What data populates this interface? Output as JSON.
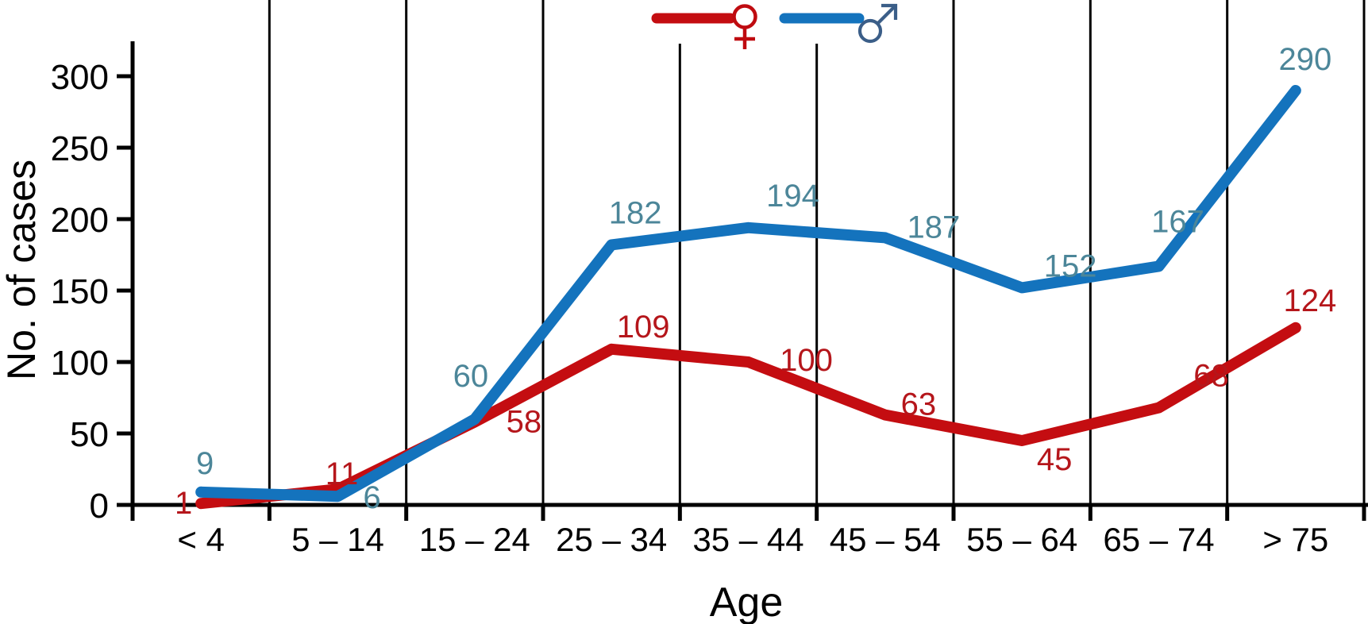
{
  "chart_data": {
    "type": "line",
    "title": "",
    "xlabel": "Age",
    "ylabel": "No. of cases",
    "categories": [
      "< 4",
      "5 – 14",
      "15 – 24",
      "25 – 34",
      "35 – 44",
      "45 – 54",
      "55 – 64",
      "65 – 74",
      "> 75"
    ],
    "yticks": [
      0,
      50,
      100,
      150,
      200,
      250,
      300
    ],
    "ylim": [
      0,
      325
    ],
    "grid": "vertical-category-boundaries",
    "legend_position": "top-center",
    "series": [
      {
        "name": "Female",
        "symbol": "♀",
        "color": "#c40d11",
        "label_color": "#b5161b",
        "values": [
          1,
          11,
          58,
          109,
          100,
          63,
          45,
          68,
          124
        ],
        "label_offsets": [
          [
            -22,
            13
          ],
          [
            5,
            -6
          ],
          [
            62,
            13
          ],
          [
            40,
            -15
          ],
          [
            73,
            11
          ],
          [
            42,
            0
          ],
          [
            41,
            37
          ],
          [
            66,
            -27
          ],
          [
            18,
            -21
          ]
        ]
      },
      {
        "name": "Male",
        "symbol": "♂",
        "color": "#1473bd",
        "label_color": "#4c8699",
        "values": [
          9,
          6,
          60,
          182,
          194,
          187,
          152,
          167,
          290
        ],
        "label_offsets": [
          [
            5,
            -23
          ],
          [
            43,
            15
          ],
          [
            -5,
            -41
          ],
          [
            30,
            -27
          ],
          [
            56,
            -27
          ],
          [
            61,
            0
          ],
          [
            61,
            -14
          ],
          [
            24,
            -43
          ],
          [
            12,
            -26
          ]
        ]
      }
    ],
    "colors": {
      "axis": "#000000",
      "grid": "#000000",
      "female_symbol": "#bf0b10",
      "male_symbol": "#3b5e88",
      "background": "#ffffff"
    }
  }
}
